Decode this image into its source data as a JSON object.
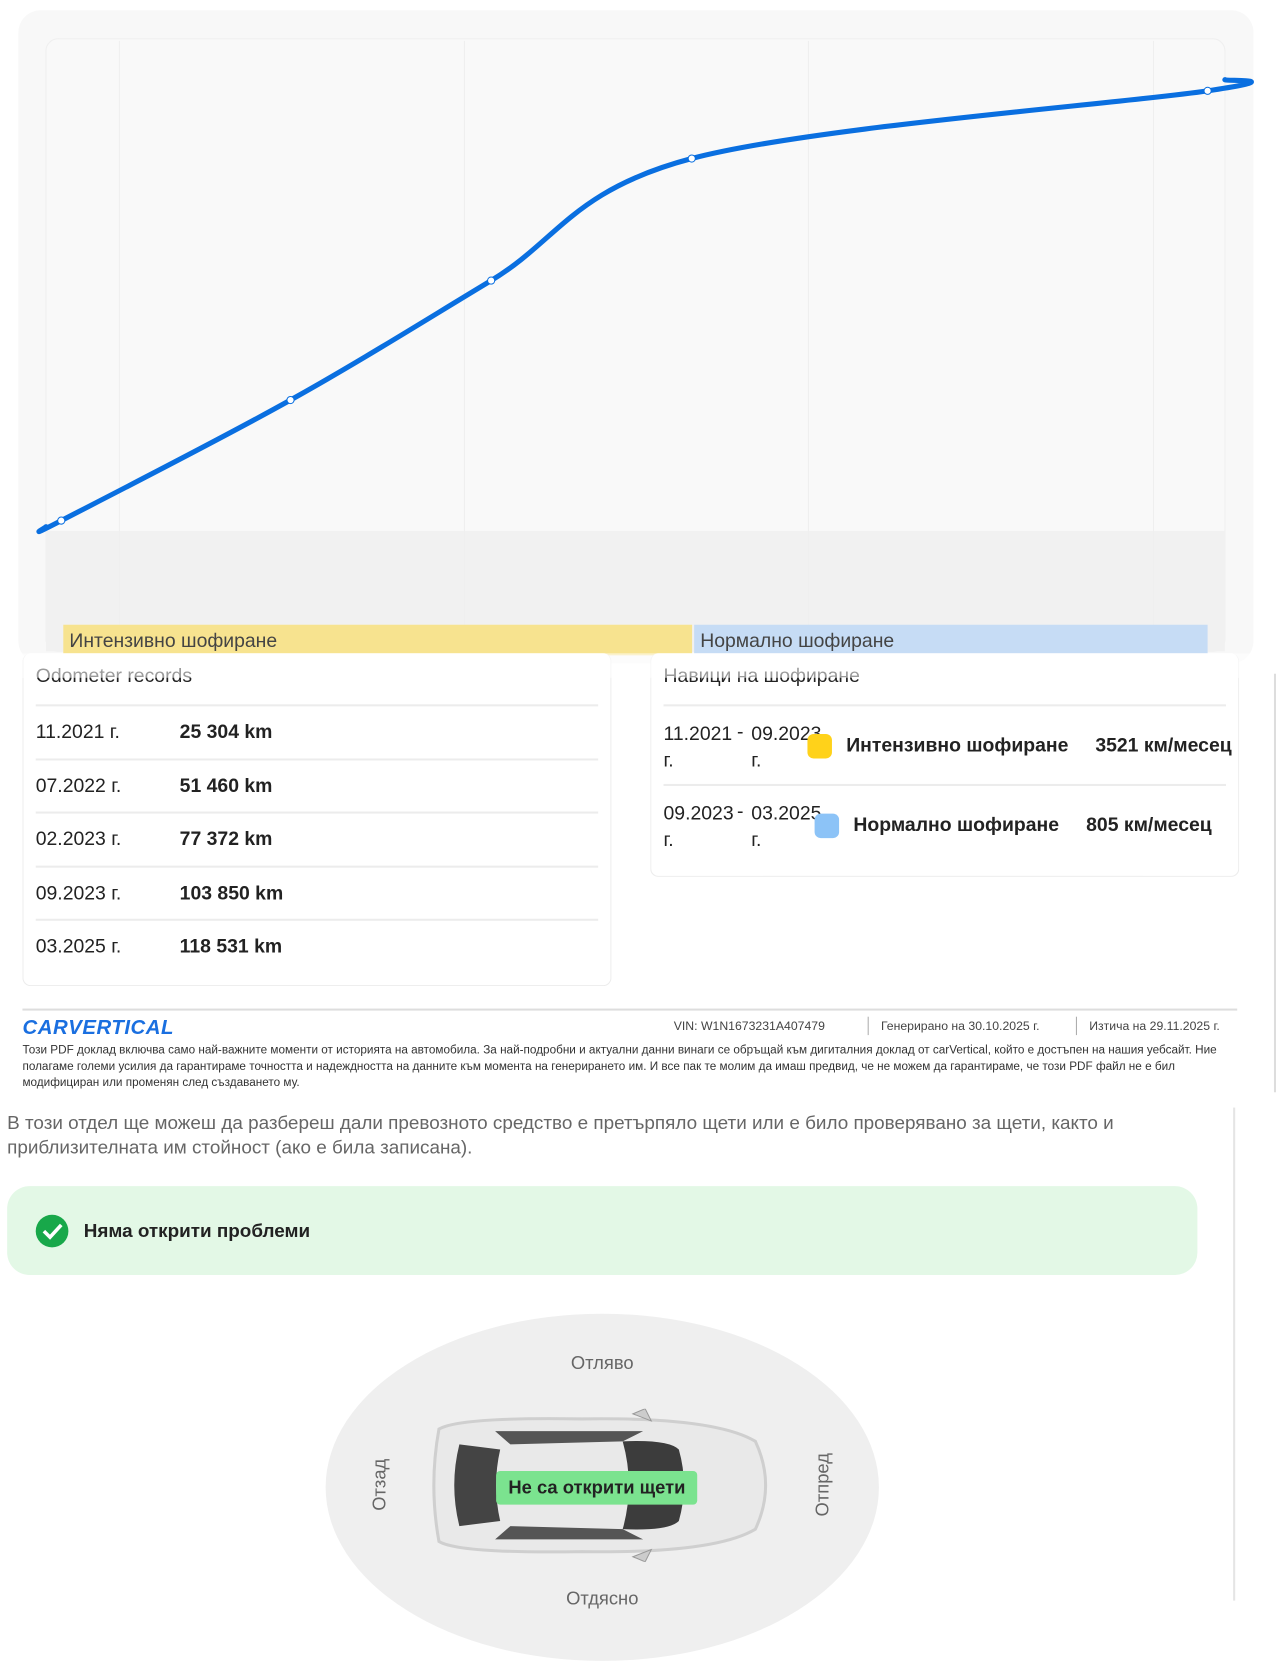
{
  "mileage_chart": {
    "type": "line",
    "x": [
      "11.2021",
      "07.2022",
      "02.2023",
      "09.2023",
      "03.2025"
    ],
    "values": [
      25304,
      51460,
      77372,
      103850,
      118531
    ],
    "color": "#0a6fe0",
    "bands": [
      {
        "label": "Интензивно шофиране",
        "color": "#f7e38f"
      },
      {
        "label": "Нормално шофиране",
        "color": "#c6dcf5"
      }
    ]
  },
  "odometer": {
    "title": "Odometer records",
    "rows": [
      {
        "date": "11.2021 г.",
        "km": "25 304 km"
      },
      {
        "date": "07.2022 г.",
        "km": "51 460 km"
      },
      {
        "date": "02.2023 г.",
        "km": "77 372 km"
      },
      {
        "date": "09.2023 г.",
        "km": "103 850 km"
      },
      {
        "date": "03.2025 г.",
        "km": "118 531 km"
      }
    ]
  },
  "habits": {
    "title": "Навици на шофиране",
    "rows": [
      {
        "from": "11.2021 г.",
        "to": "09.2023 г.",
        "color": "#ffd21a",
        "label": "Интензивно шофиране",
        "rate": "3521 км/месец"
      },
      {
        "from": "09.2023 г.",
        "to": "03.2025 г.",
        "color": "#8cc3f7",
        "label": "Нормално шофиране",
        "rate": "805 км/месец"
      }
    ]
  },
  "footer": {
    "logo": "CARVERTICAL",
    "vin": "VIN:  W1N1673231A407479",
    "generated": "Генерирано на  30.10.2025 г.",
    "expires": "Изтича на  29.11.2025 г.",
    "disclaimer": "Този PDF доклад включва само най-важните моменти от историята на автомобила. За най-подробни и актуални данни винаги се обръщай към дигиталния доклад от carVertical, който е достъпен на нашия уебсайт. Ние полагаме големи усилия да гарантираме точността и надеждността на данните към момента на генерирането им. И все пак те молим да имаш предвид, че не можем да гарантираме, че този PDF файл не е бил модифициран или променян след създаването му."
  },
  "damage": {
    "intro": "В този отдел ще можеш да разбереш дали превозното средство е претърпяло щети или е било проверявано за щети, както и приблизителната им стойност (ако е била записана).",
    "status": "Няма открити проблеми",
    "left": "Отляво",
    "rear": "Отзад",
    "front": "Отпред",
    "right": "Отдясно",
    "car_label": "Не са открити щети"
  }
}
